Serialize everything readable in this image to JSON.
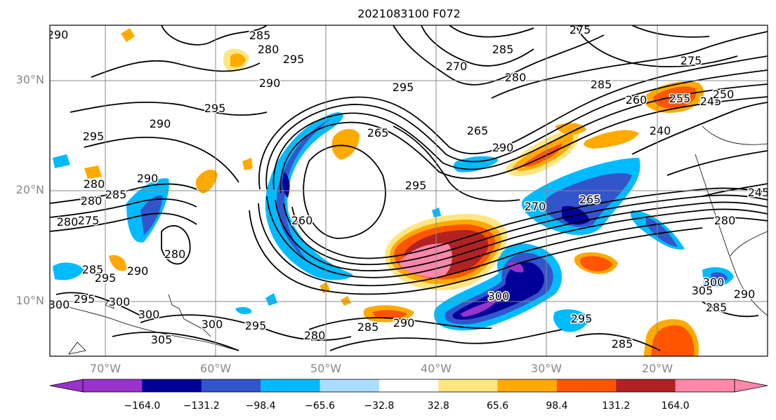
{
  "title": "2021083100 F072",
  "map": {
    "lat_labels": [
      "30°N",
      "20°N",
      "10°N"
    ],
    "lon_labels": [
      "70°W",
      "60°W",
      "50°W",
      "40°W",
      "30°W",
      "20°W"
    ],
    "lon_range": [
      -75,
      -10
    ],
    "lat_range": [
      5,
      35
    ]
  },
  "contour_labels": [
    "290",
    "285",
    "280",
    "295",
    "290",
    "295",
    "290",
    "295",
    "295",
    "265",
    "295",
    "280",
    "270",
    "285",
    "275",
    "275",
    "280",
    "285",
    "260",
    "265",
    "290",
    "240",
    "255",
    "245",
    "250",
    "295",
    "270",
    "265",
    "280",
    "245",
    "290",
    "280",
    "285",
    "275",
    "280",
    "300",
    "285",
    "290",
    "280",
    "285",
    "300",
    "295",
    "300",
    "305",
    "285",
    "300",
    "305",
    "260",
    "280",
    "290",
    "295",
    "300",
    "295",
    "290",
    "285",
    "300"
  ],
  "colorbar": {
    "ticks": [
      "−164.0",
      "−131.2",
      "−98.4",
      "−65.6",
      "−32.8",
      "32.8",
      "65.6",
      "98.4",
      "131.2",
      "164.0"
    ],
    "colors": [
      "#9933cc",
      "#000099",
      "#3355cc",
      "#00bbff",
      "#aaddff",
      "#ffffff",
      "#ffe680",
      "#ffaa00",
      "#ff5500",
      "#b22222",
      "#ff88aa"
    ],
    "extend": "both"
  }
}
